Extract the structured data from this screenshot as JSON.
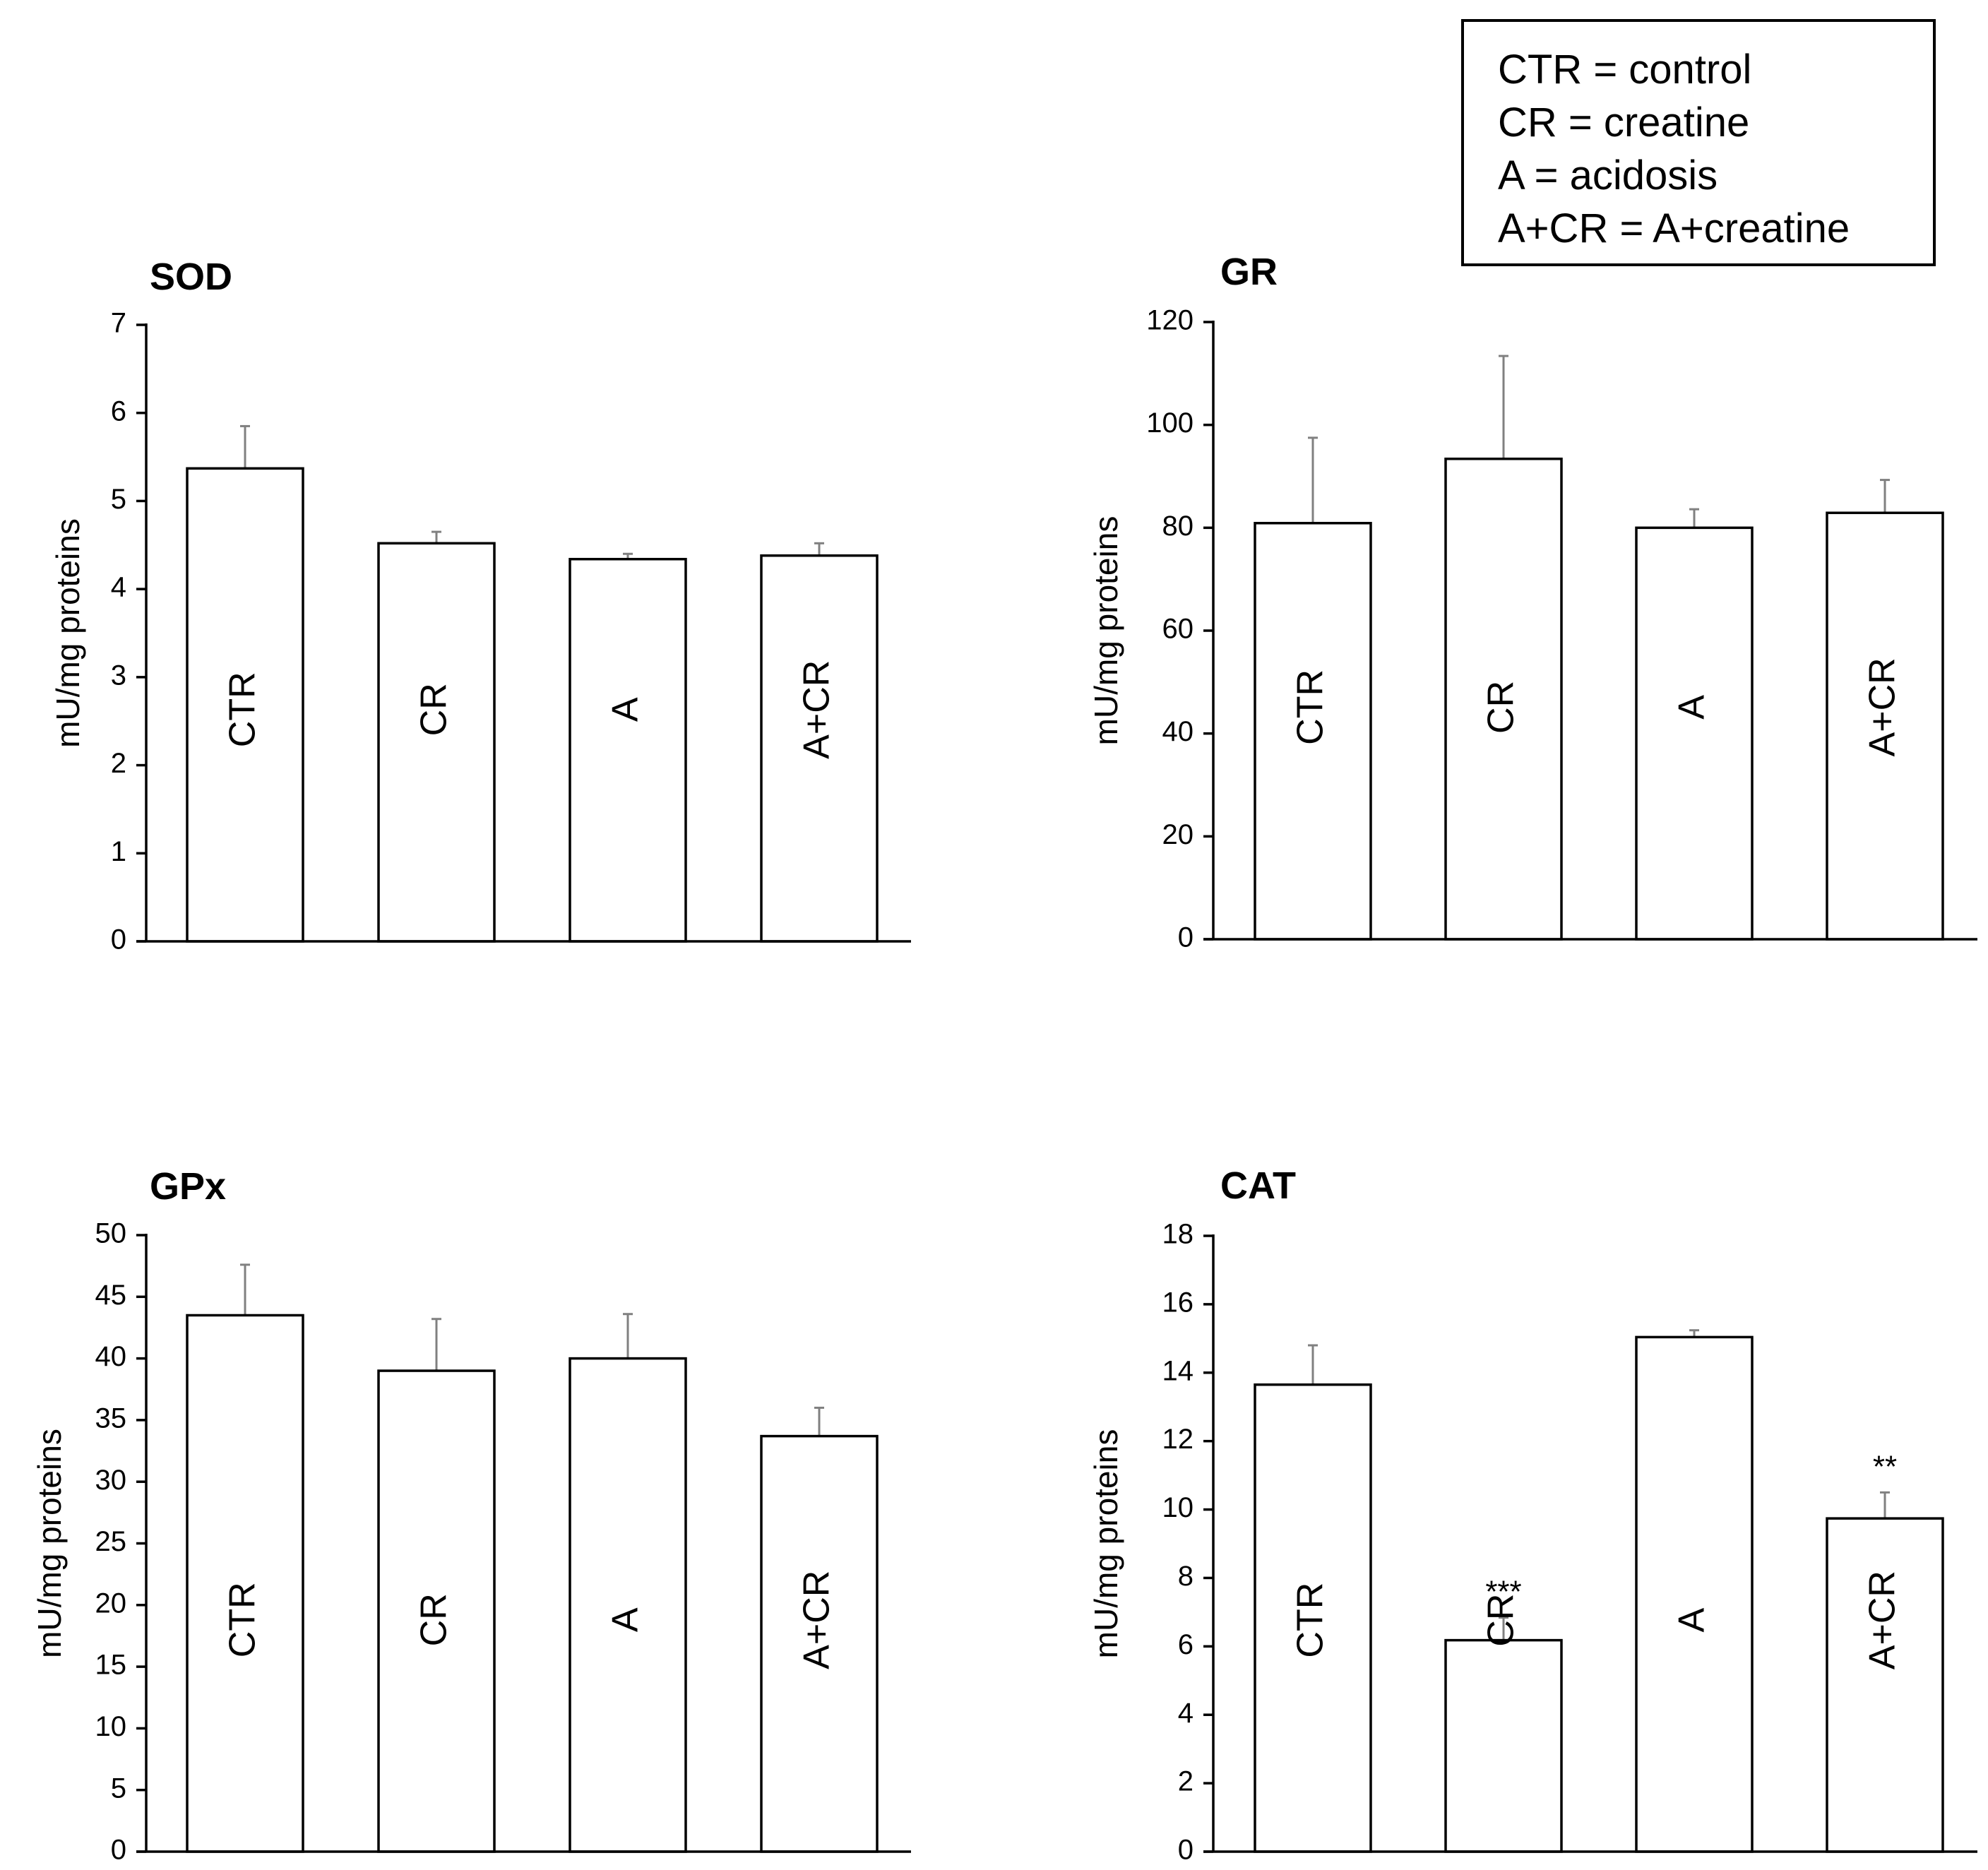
{
  "legend": {
    "entries": [
      "CTR = control",
      "CR = creatine",
      "A = acidosis",
      "A+CR = A+creatine"
    ]
  },
  "style": {
    "bar_fill": "#ffffff",
    "bar_stroke": "#000000",
    "axis_color": "#000000",
    "error_bar_color": "#808080"
  },
  "chart_data": [
    {
      "id": "sod",
      "type": "bar",
      "title": "SOD",
      "ylabel": "mU/mg proteins",
      "xlabel": "",
      "categories": [
        "CTR",
        "CR",
        "A",
        "A+CR"
      ],
      "values": [
        5.37,
        4.52,
        4.34,
        4.38
      ],
      "errors": [
        0.48,
        0.13,
        0.06,
        0.14
      ],
      "significance": [
        "",
        "",
        "",
        ""
      ],
      "ylim": [
        0,
        7
      ],
      "yticks": [
        0,
        1,
        2,
        3,
        4,
        5,
        6,
        7
      ],
      "ytick_labels": [
        "0",
        "1",
        "2",
        "3",
        "4",
        "5",
        "6",
        "7"
      ]
    },
    {
      "id": "gr",
      "type": "bar",
      "title": "GR",
      "ylabel": "mU/mg proteins",
      "xlabel": "",
      "categories": [
        "CTR",
        "CR",
        "A",
        "A+CR"
      ],
      "values": [
        80.9,
        93.4,
        80.0,
        82.9
      ],
      "errors": [
        16.6,
        20.0,
        3.6,
        6.4
      ],
      "significance": [
        "",
        "",
        "",
        ""
      ],
      "ylim": [
        0,
        120
      ],
      "yticks": [
        0,
        20,
        40,
        60,
        80,
        100,
        120
      ],
      "ytick_labels": [
        "0",
        "20",
        "40",
        "60",
        "80",
        "100",
        "120"
      ]
    },
    {
      "id": "gpx",
      "type": "bar",
      "title": "GPx",
      "ylabel": "mU/mg proteins",
      "xlabel": "",
      "categories": [
        "CTR",
        "CR",
        "A",
        "A+CR"
      ],
      "values": [
        43.5,
        39.0,
        40.0,
        33.7
      ],
      "errors": [
        4.1,
        4.2,
        3.6,
        2.3
      ],
      "significance": [
        "",
        "",
        "",
        ""
      ],
      "ylim": [
        0,
        50
      ],
      "yticks": [
        0,
        5,
        10,
        15,
        20,
        25,
        30,
        35,
        40,
        45,
        50
      ],
      "ytick_labels": [
        "0",
        "5",
        "10",
        "15",
        "20",
        "25",
        "30",
        "35",
        "40",
        "45",
        "50"
      ]
    },
    {
      "id": "cat",
      "type": "bar",
      "title": "CAT",
      "ylabel": "mU/mg proteins",
      "xlabel": "",
      "categories": [
        "CTR",
        "CR",
        "A",
        "A+CR"
      ],
      "values": [
        13.65,
        6.18,
        15.04,
        9.74
      ],
      "errors": [
        1.15,
        0.66,
        0.2,
        0.76
      ],
      "significance": [
        "",
        "***",
        "",
        "**"
      ],
      "ylim": [
        0,
        18
      ],
      "yticks": [
        0,
        2,
        4,
        6,
        8,
        10,
        12,
        14,
        16,
        18
      ],
      "ytick_labels": [
        "0",
        "2",
        "4",
        "6",
        "8",
        "10",
        "12",
        "14",
        "16",
        "18"
      ]
    }
  ]
}
